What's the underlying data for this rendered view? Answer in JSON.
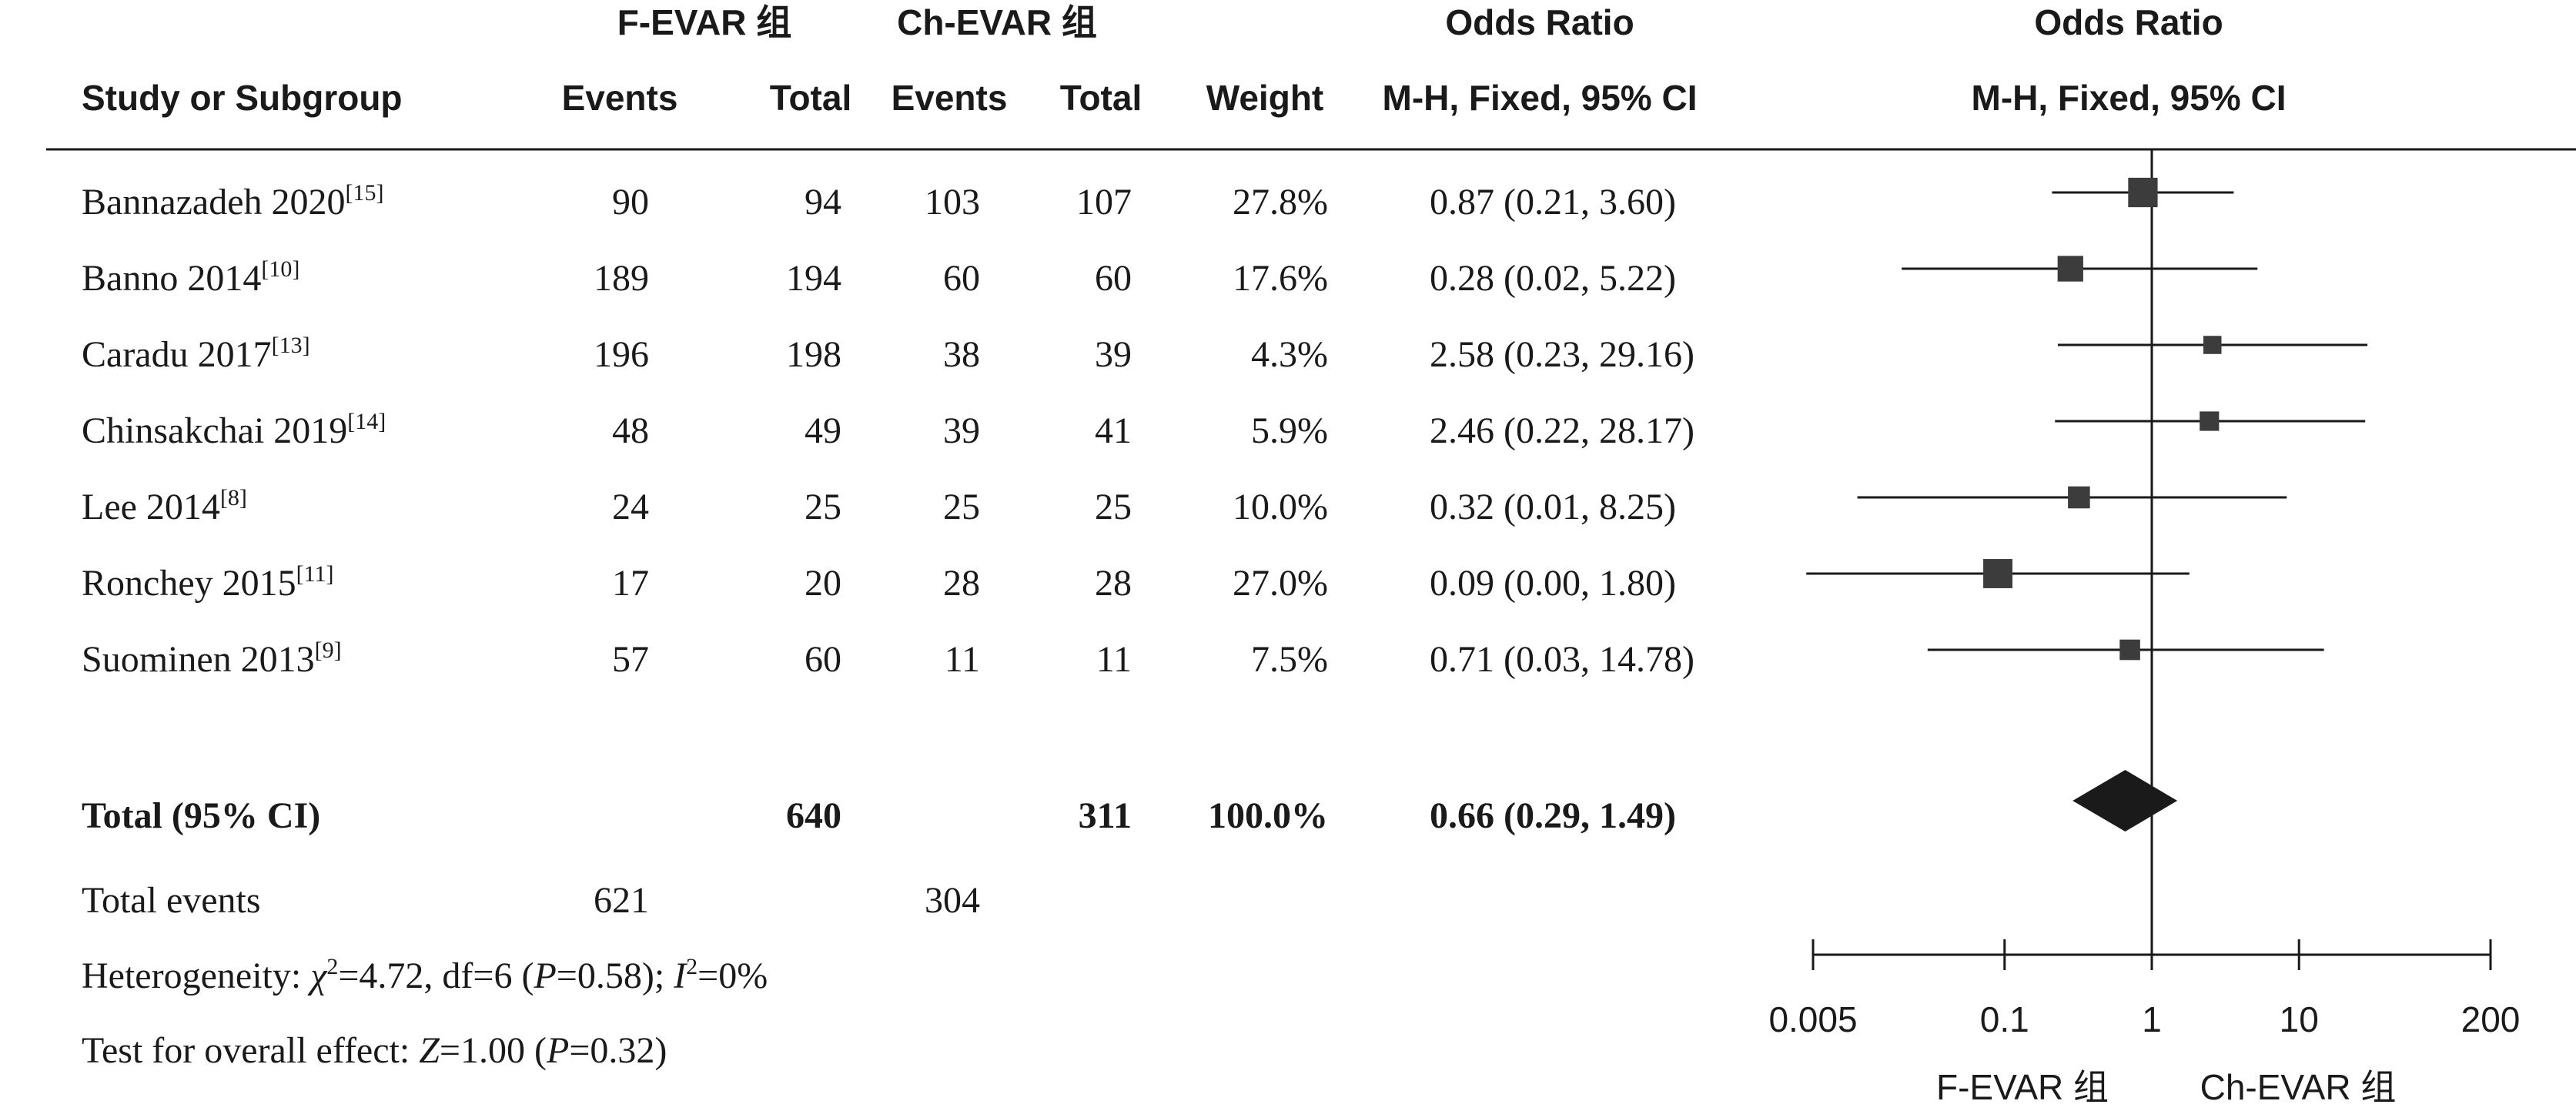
{
  "headers": {
    "group1_title": "F-EVAR 组",
    "group2_title": "Ch-EVAR 组",
    "or_title": "Odds Ratio",
    "or_plot_title": "Odds Ratio",
    "study": "Study or Subgroup",
    "events1": "Events",
    "total1": "Total",
    "events2": "Events",
    "total2": "Total",
    "weight": "Weight",
    "method": "M-H, Fixed, 95% CI",
    "plot_method": "M-H, Fixed, 95% CI"
  },
  "studies": [
    {
      "name": "Bannazadeh 2020",
      "ref": "[15]",
      "e1": "90",
      "t1": "94",
      "e2": "103",
      "t2": "107",
      "weight": "27.8%",
      "or_text": "0.87 (0.21, 3.60)",
      "or": 0.87,
      "lo": 0.21,
      "hi": 3.6,
      "w": 27.8
    },
    {
      "name": "Banno 2014",
      "ref": "[10]",
      "e1": "189",
      "t1": "194",
      "e2": "60",
      "t2": "60",
      "weight": "17.6%",
      "or_text": "0.28 (0.02, 5.22)",
      "or": 0.28,
      "lo": 0.02,
      "hi": 5.22,
      "w": 17.6
    },
    {
      "name": "Caradu 2017",
      "ref": "[13]",
      "e1": "196",
      "t1": "198",
      "e2": "38",
      "t2": "39",
      "weight": "4.3%",
      "or_text": "2.58 (0.23, 29.16)",
      "or": 2.58,
      "lo": 0.23,
      "hi": 29.16,
      "w": 4.3
    },
    {
      "name": "Chinsakchai 2019",
      "ref": "[14]",
      "e1": "48",
      "t1": "49",
      "e2": "39",
      "t2": "41",
      "weight": "5.9%",
      "or_text": "2.46 (0.22, 28.17)",
      "or": 2.46,
      "lo": 0.22,
      "hi": 28.17,
      "w": 5.9
    },
    {
      "name": "Lee 2014",
      "ref": "[8]",
      "e1": "24",
      "t1": "25",
      "e2": "25",
      "t2": "25",
      "weight": "10.0%",
      "or_text": "0.32 (0.01, 8.25)",
      "or": 0.32,
      "lo": 0.01,
      "hi": 8.25,
      "w": 10.0
    },
    {
      "name": "Ronchey 2015",
      "ref": "[11]",
      "e1": "17",
      "t1": "20",
      "e2": "28",
      "t2": "28",
      "weight": "27.0%",
      "or_text": "0.09 (0.00, 1.80)",
      "or": 0.09,
      "lo": 0.0045,
      "hi": 1.8,
      "w": 27.0
    },
    {
      "name": "Suominen 2013",
      "ref": "[9]",
      "e1": "57",
      "t1": "60",
      "e2": "11",
      "t2": "11",
      "weight": "7.5%",
      "or_text": "0.71 (0.03, 14.78)",
      "or": 0.71,
      "lo": 0.03,
      "hi": 14.78,
      "w": 7.5
    }
  ],
  "total": {
    "label": "Total (95% CI)",
    "t1": "640",
    "t2": "311",
    "weight": "100.0%",
    "or_text": "0.66 (0.29, 1.49)",
    "or": 0.66,
    "lo": 0.29,
    "hi": 1.49
  },
  "total_events": {
    "label": "Total events",
    "e1": "621",
    "e2": "304"
  },
  "heterogeneity": {
    "p1": "Heterogeneity: ",
    "chi": "χ",
    "p2": "=4.72, df=6 (",
    "P": "P",
    "p3": "=0.58); ",
    "I": "I",
    "p4": "=0%",
    "sup2": "2"
  },
  "overall": {
    "p1": "Test for overall effect: ",
    "Z": "Z",
    "p2": "=1.00 (",
    "P": "P",
    "p3": "=0.32)"
  },
  "chart_data": {
    "type": "forest",
    "scale": "log",
    "xlim": [
      0.005,
      200
    ],
    "ticks": [
      0.005,
      0.1,
      1,
      10,
      200
    ],
    "tick_labels": [
      "0.005",
      "0.1",
      "1",
      "10",
      "200"
    ],
    "reference_line": 1,
    "left_label": "F-EVAR 组",
    "right_label": "Ch-EVAR 组",
    "colors": {
      "box": "#3c3c3c",
      "diamond": "#1a1a1a",
      "line": "#1a1a1a"
    }
  }
}
